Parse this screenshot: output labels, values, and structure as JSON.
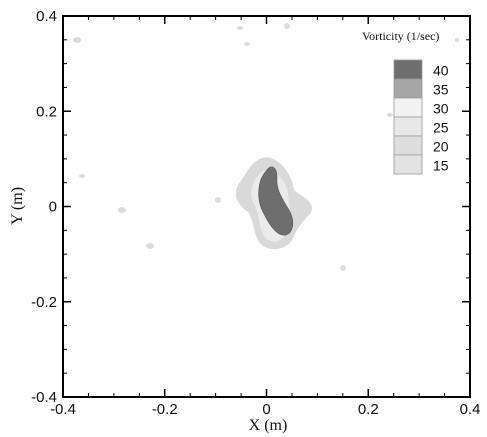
{
  "chart_data": {
    "type": "contour",
    "title": "",
    "xlabel": "X (m)",
    "ylabel": "Y (m)",
    "xlim": [
      -0.4,
      0.4
    ],
    "ylim": [
      -0.4,
      0.4
    ],
    "xticks": [
      -0.4,
      -0.2,
      0,
      0.2,
      0.4
    ],
    "yticks": [
      -0.4,
      -0.2,
      0,
      0.2,
      0.4
    ],
    "xtick_labels": [
      "-0.4",
      "-0.2",
      "0",
      "0.2",
      "0.4"
    ],
    "ytick_labels": [
      "-0.4",
      "-0.2",
      "0",
      "0.2",
      "0.4"
    ],
    "grid": false,
    "legend": {
      "title": "Vorticity (1/sec)",
      "placement": "top-right",
      "levels": [
        {
          "label": "40",
          "color": "#6e6e6e"
        },
        {
          "label": "35",
          "color": "#a6a6a6"
        },
        {
          "label": "30",
          "color": "#f2f2f2"
        },
        {
          "label": "25",
          "color": "#e8e8e8"
        },
        {
          "label": "20",
          "color": "#dddddd"
        },
        {
          "label": "15",
          "color": "#e3e3e3"
        }
      ]
    },
    "features": [
      {
        "name": "vortex-core",
        "level": "40",
        "center": [
          0.01,
          0.01
        ],
        "color": "#6e6e6e"
      },
      {
        "name": "vortex-halo",
        "level": "15-20",
        "center": [
          0.01,
          0.01
        ],
        "color": "#d9d9d9"
      }
    ]
  }
}
